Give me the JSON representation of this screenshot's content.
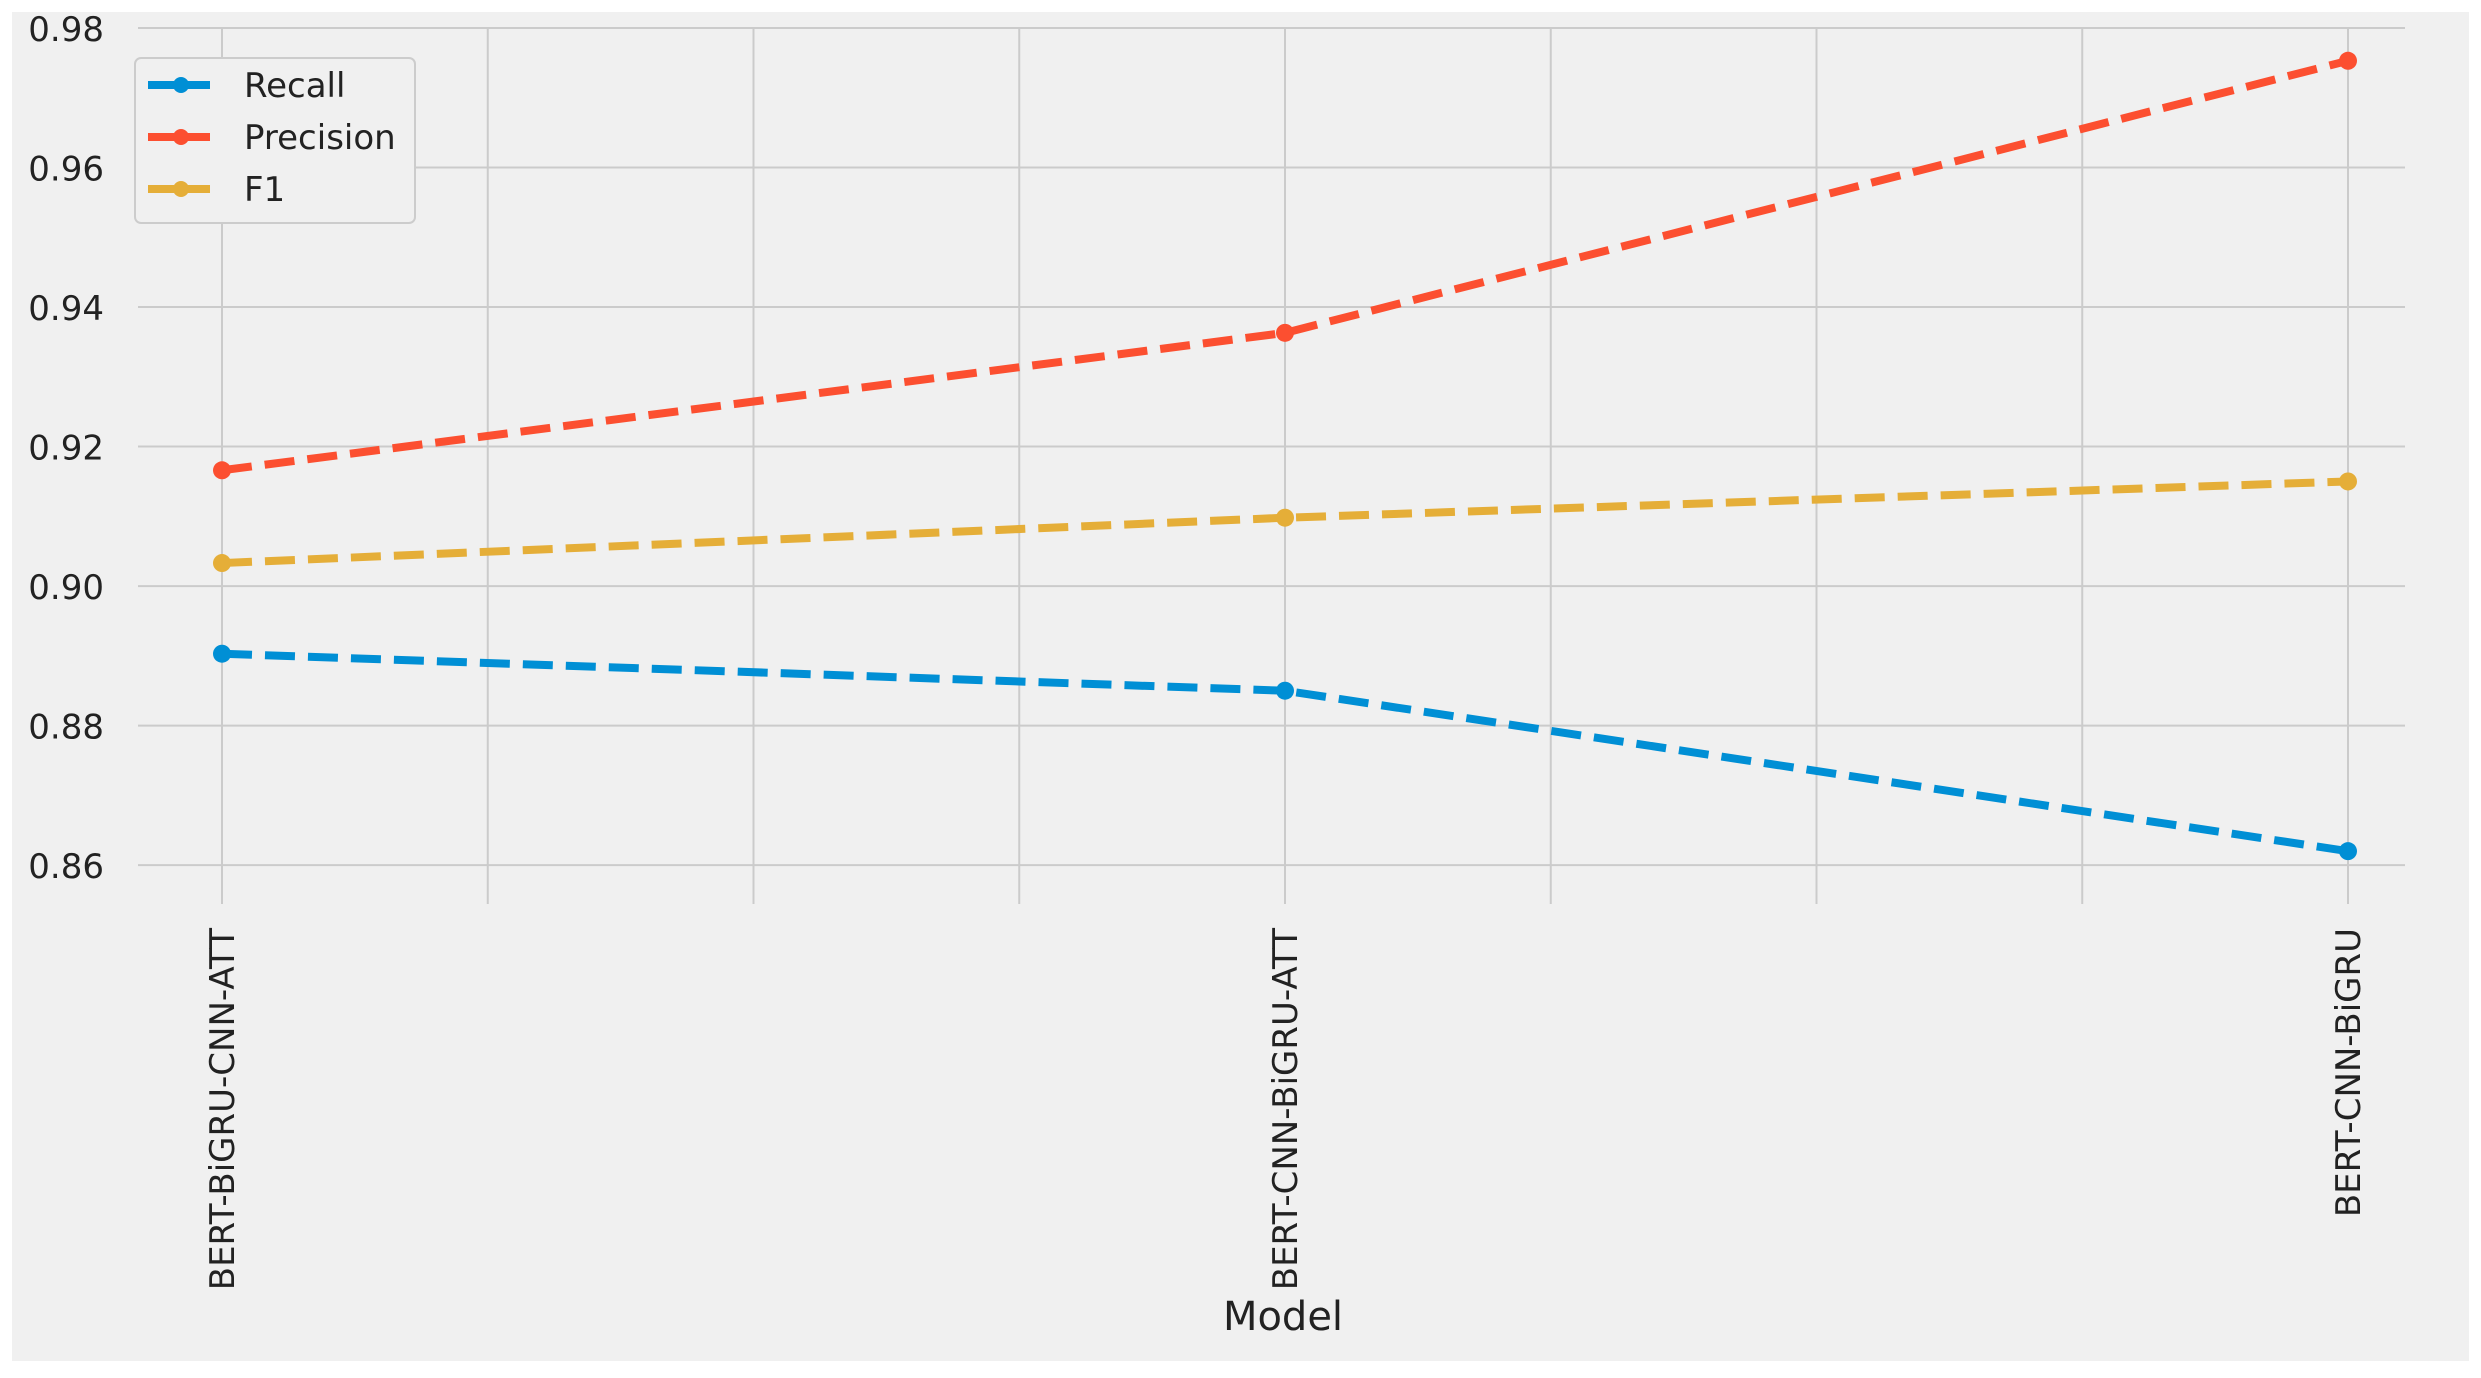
{
  "chart_data": {
    "type": "line",
    "style": "fivethirtyeight",
    "title": "",
    "xlabel": "Model",
    "ylabel": "",
    "categories": [
      "BERT-BiGRU-CNN-ATT",
      "BERT-CNN-BiGRU-ATT",
      "BERT-CNN-BiGRU"
    ],
    "x_tick_rotation": 90,
    "ylim": [
      0.855,
      0.98
    ],
    "yticks": [
      0.86,
      0.88,
      0.9,
      0.92,
      0.94,
      0.96,
      0.98
    ],
    "ytick_labels": [
      "0.86",
      "0.88",
      "0.90",
      "0.92",
      "0.94",
      "0.96",
      "0.98"
    ],
    "grid": true,
    "legend_position": "top-left",
    "line_style": "dashed",
    "marker": "circle",
    "series": [
      {
        "name": "Recall",
        "color": "#008fd5",
        "values": [
          0.8903,
          0.885,
          0.862
        ]
      },
      {
        "name": "Precision",
        "color": "#fc4f30",
        "values": [
          0.9166,
          0.9363,
          0.9753
        ]
      },
      {
        "name": "F1",
        "color": "#e5ae38",
        "values": [
          0.9033,
          0.9098,
          0.915
        ]
      }
    ]
  }
}
